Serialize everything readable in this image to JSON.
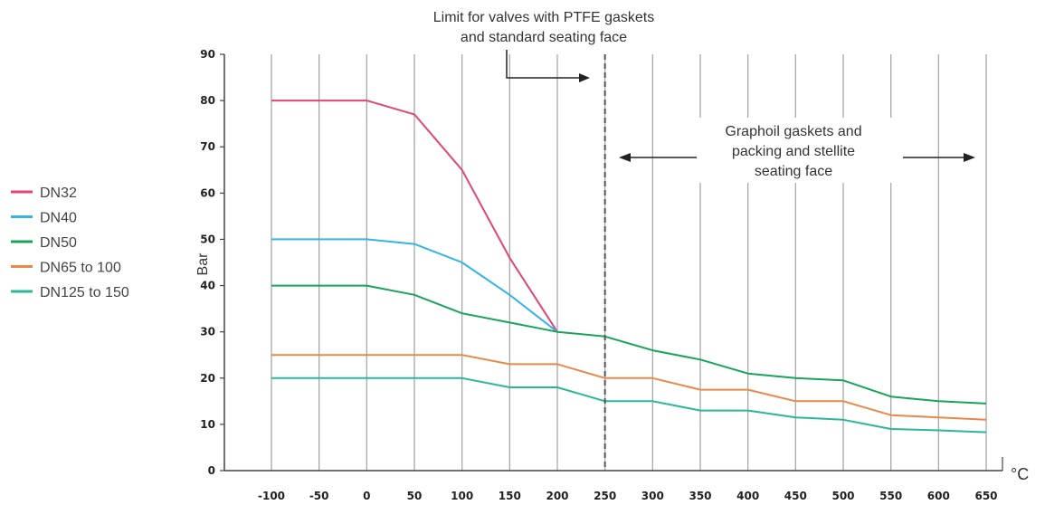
{
  "chart_data": {
    "type": "line",
    "title": "",
    "xlabel": "°C",
    "ylabel": "Bar",
    "xlim": [
      -100,
      650
    ],
    "ylim": [
      0,
      90
    ],
    "x_ticks": [
      -100,
      -50,
      0,
      50,
      100,
      150,
      200,
      250,
      300,
      350,
      400,
      450,
      500,
      550,
      600,
      650
    ],
    "y_ticks": [
      0,
      10,
      20,
      30,
      40,
      50,
      60,
      70,
      80,
      90
    ],
    "grid": "vertical",
    "legend_position": "left",
    "series": [
      {
        "name": "DN32",
        "color": "#e0457b",
        "x": [
          -100,
          0,
          50,
          100,
          150,
          200
        ],
        "y": [
          80,
          80,
          77,
          65,
          46,
          30
        ]
      },
      {
        "name": "DN40",
        "color": "#35b4e8",
        "x": [
          -100,
          0,
          50,
          100,
          150,
          200
        ],
        "y": [
          50,
          50,
          49,
          45,
          38,
          30
        ]
      },
      {
        "name": "DN50",
        "color": "#1aa35a",
        "x": [
          -100,
          0,
          50,
          100,
          150,
          200,
          250,
          300,
          350,
          400,
          450,
          500,
          550,
          600,
          650
        ],
        "y": [
          40,
          40,
          38,
          34,
          32,
          30,
          29,
          26,
          24,
          21,
          20,
          19.5,
          16,
          15,
          14.5
        ]
      },
      {
        "name": "DN65 to 100",
        "color": "#e8894a",
        "x": [
          -100,
          100,
          150,
          200,
          250,
          300,
          350,
          400,
          450,
          500,
          550,
          600,
          650
        ],
        "y": [
          25,
          25,
          23,
          23,
          20,
          20,
          17.5,
          17.5,
          15,
          15,
          12,
          11.5,
          11
        ]
      },
      {
        "name": "DN125 to 150",
        "color": "#2bb59a",
        "x": [
          -100,
          100,
          150,
          200,
          250,
          300,
          350,
          400,
          450,
          500,
          550,
          600,
          650
        ],
        "y": [
          20,
          20,
          18,
          18,
          15,
          15,
          13,
          13,
          11.5,
          11,
          9,
          8.7,
          8.3
        ]
      }
    ],
    "limit_line_x": 250,
    "annotations": {
      "ptfe_line1": "Limit for valves with PTFE gaskets",
      "ptfe_line2": "and standard seating face",
      "graphoil_line1": "Graphoil gaskets and",
      "graphoil_line2": "packing and stellite",
      "graphoil_line3": "seating face"
    }
  }
}
